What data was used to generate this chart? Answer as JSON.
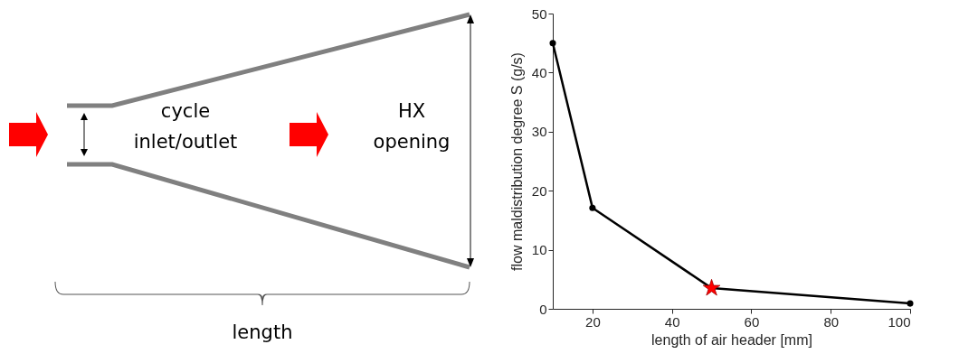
{
  "chart_data": [
    {
      "type": "other",
      "annotations": [
        "cycle inlet/outlet",
        "HX opening",
        "length"
      ]
    },
    {
      "type": "line",
      "xlabel": "length of air header [mm]",
      "ylabel": "flow maldistribution degree S (g/s)",
      "xlim": [
        10,
        100
      ],
      "ylim": [
        0,
        50
      ],
      "xticks": [
        20,
        40,
        60,
        80,
        100
      ],
      "yticks": [
        0,
        10,
        20,
        30,
        40,
        50
      ],
      "marker": "circle",
      "series": [
        {
          "color": "#000000",
          "x": [
            10,
            20,
            50,
            100
          ],
          "values": [
            45,
            17.1,
            3.5,
            0.9
          ]
        },
        {
          "type": "scatter",
          "marker": "star",
          "color": "#ff0000",
          "x": [
            50
          ],
          "values": [
            3.5
          ]
        }
      ]
    }
  ]
}
